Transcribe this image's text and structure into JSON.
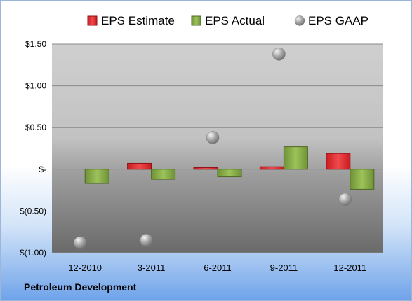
{
  "chart_data": {
    "type": "bar",
    "categories": [
      "12-2010",
      "3-2011",
      "6-2011",
      "9-2011",
      "12-2011"
    ],
    "series": [
      {
        "name": "EPS Estimate",
        "type": "bar",
        "color": "#e0272b",
        "values": [
          0.0,
          0.07,
          0.02,
          0.03,
          0.19
        ]
      },
      {
        "name": "EPS Actual",
        "type": "bar",
        "color": "#8db04a",
        "values": [
          -0.17,
          -0.12,
          -0.09,
          0.27,
          -0.24
        ]
      },
      {
        "name": "EPS GAAP",
        "type": "scatter",
        "color": "#9a9a9a",
        "values": [
          -0.88,
          -0.85,
          0.38,
          1.38,
          -0.36
        ]
      }
    ],
    "yticks": [
      1.5,
      1.0,
      0.5,
      0,
      -0.5,
      -1.0
    ],
    "ytick_labels": [
      "$1.50",
      "$1.00",
      "$0.50",
      "$-",
      "$(0.50)",
      "$(1.00)"
    ],
    "ylim": [
      -1.0,
      1.5
    ],
    "grid": true,
    "legend_position": "top",
    "footer": "Petroleum Development"
  }
}
